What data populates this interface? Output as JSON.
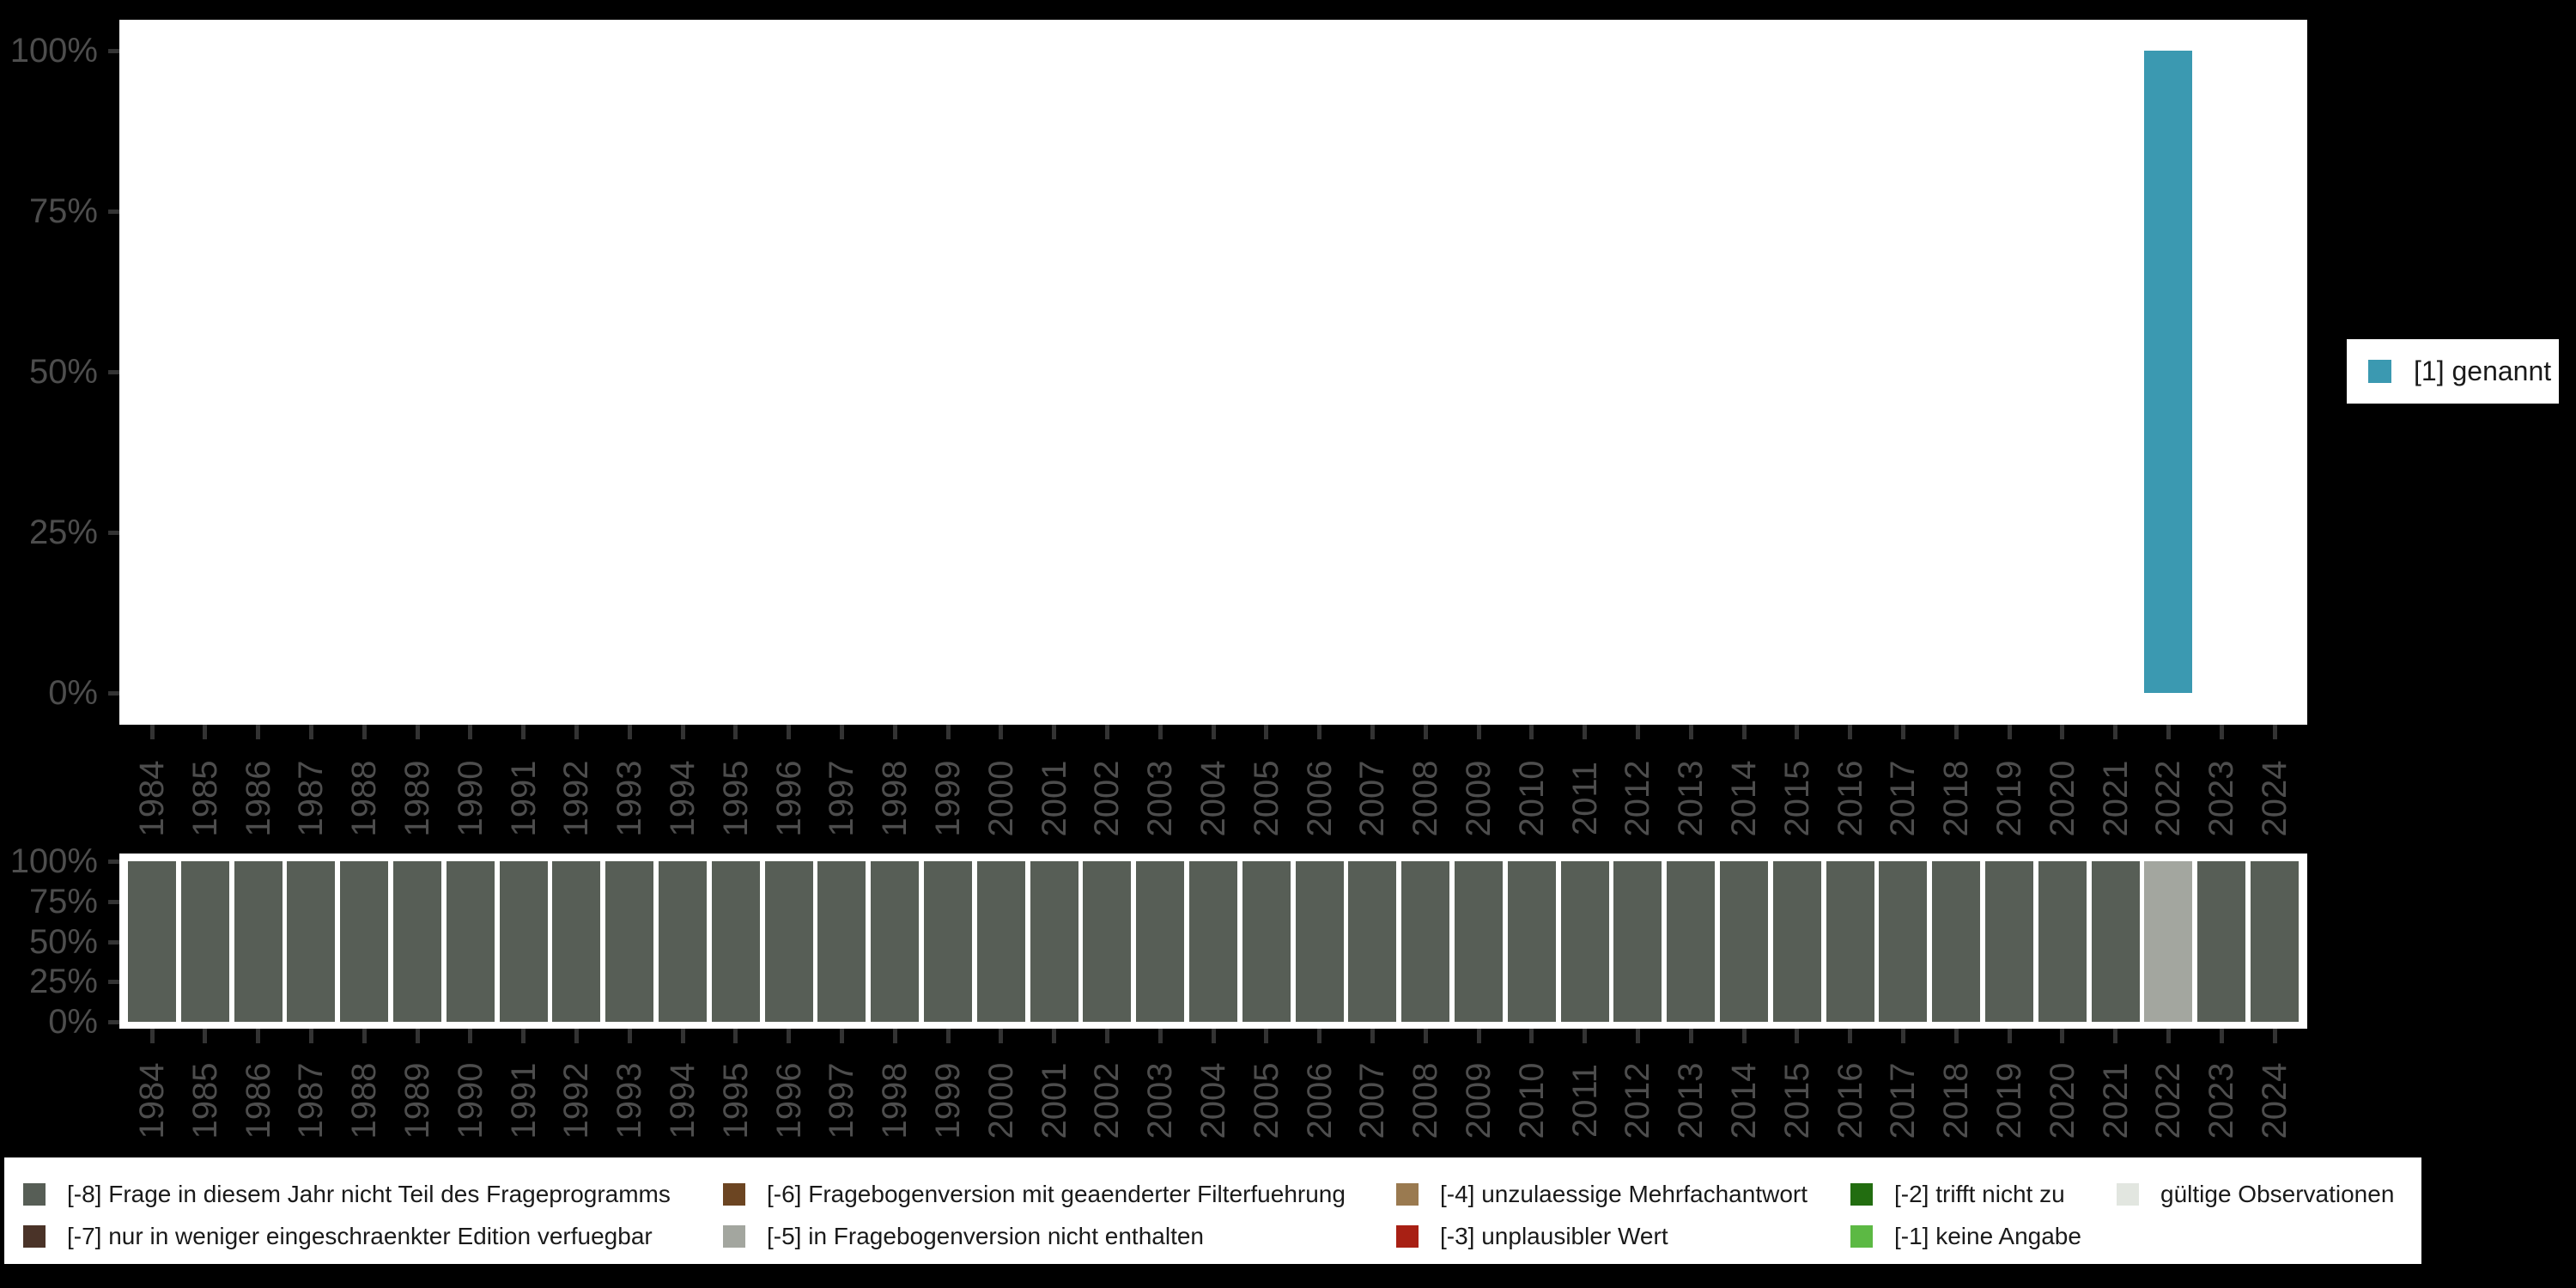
{
  "colors": {
    "1": "#3B99B1",
    "-8": "#575E56",
    "-7": "#4A3328",
    "-6": "#6C4522",
    "-5": "#A3A69F",
    "-4": "#9A7A50",
    "-3": "#A82014",
    "-2": "#226D10",
    "-1": "#5CB944",
    "valid": "#E2E6E0",
    "axis_label": "#4d4d4d",
    "tick": "#333333",
    "panel_bg": "#ffffff",
    "page_bg": "#000000"
  },
  "chart_data": [
    {
      "type": "bar",
      "title": "",
      "xlabel": "",
      "ylabel": "",
      "ylim": [
        0,
        100
      ],
      "grid": false,
      "legend_position": "right",
      "y_tick_labels": [
        "100%",
        "75%",
        "50%",
        "25%",
        "0%"
      ],
      "y_tick_values": [
        100,
        75,
        50,
        25,
        0
      ],
      "categories": [
        1984,
        1985,
        1986,
        1987,
        1988,
        1989,
        1990,
        1991,
        1992,
        1993,
        1994,
        1995,
        1996,
        1997,
        1998,
        1999,
        2000,
        2001,
        2002,
        2003,
        2004,
        2005,
        2006,
        2007,
        2008,
        2009,
        2010,
        2011,
        2012,
        2013,
        2014,
        2015,
        2016,
        2017,
        2018,
        2019,
        2020,
        2021,
        2022,
        2023,
        2024
      ],
      "series": [
        {
          "name": "[1] genannt",
          "code": "1",
          "color": "#3B99B1",
          "values": [
            0,
            0,
            0,
            0,
            0,
            0,
            0,
            0,
            0,
            0,
            0,
            0,
            0,
            0,
            0,
            0,
            0,
            0,
            0,
            0,
            0,
            0,
            0,
            0,
            0,
            0,
            0,
            0,
            0,
            0,
            0,
            0,
            0,
            0,
            0,
            0,
            0,
            0,
            100,
            0,
            0
          ]
        }
      ]
    },
    {
      "type": "bar",
      "title": "",
      "xlabel": "",
      "ylabel": "",
      "ylim": [
        0,
        100
      ],
      "grid": false,
      "legend_position": "bottom",
      "y_tick_labels": [
        "100%",
        "75%",
        "50%",
        "25%",
        "0%"
      ],
      "y_tick_values": [
        100,
        75,
        50,
        25,
        0
      ],
      "categories": [
        1984,
        1985,
        1986,
        1987,
        1988,
        1989,
        1990,
        1991,
        1992,
        1993,
        1994,
        1995,
        1996,
        1997,
        1998,
        1999,
        2000,
        2001,
        2002,
        2003,
        2004,
        2005,
        2006,
        2007,
        2008,
        2009,
        2010,
        2011,
        2012,
        2013,
        2014,
        2015,
        2016,
        2017,
        2018,
        2019,
        2020,
        2021,
        2022,
        2023,
        2024
      ],
      "bar_codes": [
        "-8",
        "-8",
        "-8",
        "-8",
        "-8",
        "-8",
        "-8",
        "-8",
        "-8",
        "-8",
        "-8",
        "-8",
        "-8",
        "-8",
        "-8",
        "-8",
        "-8",
        "-8",
        "-8",
        "-8",
        "-8",
        "-8",
        "-8",
        "-8",
        "-8",
        "-8",
        "-8",
        "-8",
        "-8",
        "-8",
        "-8",
        "-8",
        "-8",
        "-8",
        "-8",
        "-8",
        "-8",
        "-8",
        "-5",
        "-8",
        "-8"
      ],
      "bar_values": [
        100,
        100,
        100,
        100,
        100,
        100,
        100,
        100,
        100,
        100,
        100,
        100,
        100,
        100,
        100,
        100,
        100,
        100,
        100,
        100,
        100,
        100,
        100,
        100,
        100,
        100,
        100,
        100,
        100,
        100,
        100,
        100,
        100,
        100,
        100,
        100,
        100,
        100,
        100,
        100,
        100
      ]
    }
  ],
  "bottom_legend": {
    "items": [
      {
        "code": "-8",
        "label": "[-8] Frage in diesem Jahr nicht Teil des Frageprogramms",
        "color": "#575E56",
        "col": 1,
        "row": 1
      },
      {
        "code": "-7",
        "label": "[-7] nur in weniger eingeschraenkter Edition verfuegbar",
        "color": "#4A3328",
        "col": 1,
        "row": 2
      },
      {
        "code": "-6",
        "label": "[-6] Fragebogenversion mit geaenderter Filterfuehrung",
        "color": "#6C4522",
        "col": 2,
        "row": 1
      },
      {
        "code": "-5",
        "label": "[-5] in Fragebogenversion nicht enthalten",
        "color": "#A3A69F",
        "col": 2,
        "row": 2
      },
      {
        "code": "-4",
        "label": "[-4] unzulaessige Mehrfachantwort",
        "color": "#9A7A50",
        "col": 3,
        "row": 1
      },
      {
        "code": "-3",
        "label": "[-3] unplausibler Wert",
        "color": "#A82014",
        "col": 3,
        "row": 2
      },
      {
        "code": "-2",
        "label": "[-2] trifft nicht zu",
        "color": "#226D10",
        "col": 4,
        "row": 1
      },
      {
        "code": "-1",
        "label": "[-1] keine Angabe",
        "color": "#5CB944",
        "col": 4,
        "row": 2
      },
      {
        "code": "valid",
        "label": "gültige Observationen",
        "color": "#E2E6E0",
        "col": 5,
        "row": 1
      }
    ]
  }
}
